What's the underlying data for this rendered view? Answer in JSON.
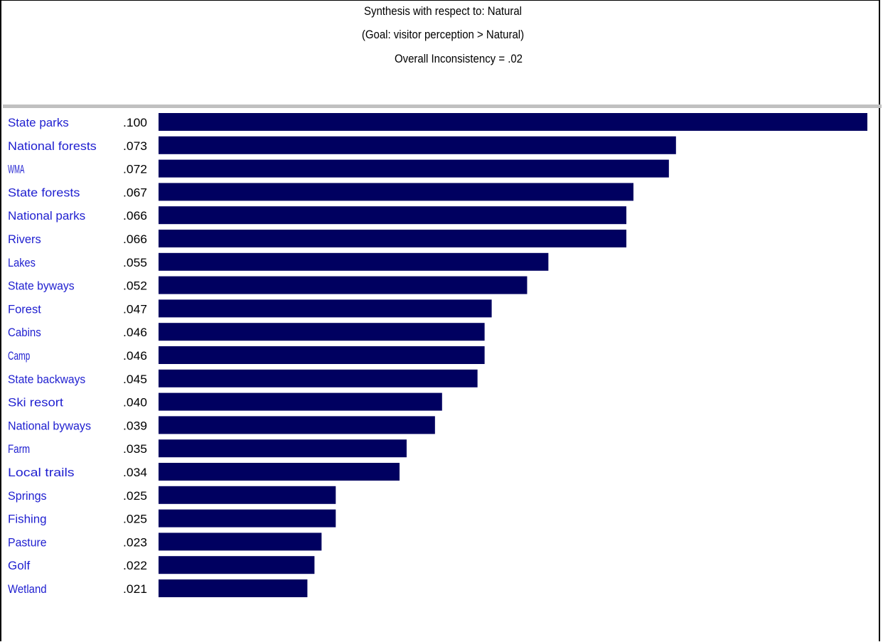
{
  "chart_data": {
    "type": "bar",
    "orientation": "horizontal",
    "title": "Synthesis with respect to: Natural",
    "subtitle": "(Goal: visitor perception > Natural)",
    "inconsistency_label": "Overall Inconsistency = .02",
    "categories": [
      "State parks",
      "National forests",
      "WMA",
      "State forests",
      "National parks",
      "Rivers",
      "Lakes",
      "State byways",
      "Forest",
      "Cabins",
      "Camp",
      "State backways",
      "Ski resort",
      "National byways",
      "Farm",
      "Local trails",
      "Springs",
      "Fishing",
      "Pasture",
      "Golf",
      "Wetland"
    ],
    "value_labels": [
      ".100",
      ".073",
      ".072",
      ".067",
      ".066",
      ".066",
      ".055",
      ".052",
      ".047",
      ".046",
      ".046",
      ".045",
      ".040",
      ".039",
      ".035",
      ".034",
      ".025",
      ".025",
      ".023",
      ".022",
      ".021"
    ],
    "values": [
      0.1,
      0.073,
      0.072,
      0.067,
      0.066,
      0.066,
      0.055,
      0.052,
      0.047,
      0.046,
      0.046,
      0.045,
      0.04,
      0.039,
      0.035,
      0.034,
      0.025,
      0.025,
      0.023,
      0.022,
      0.021
    ],
    "xlim": [
      0,
      0.1
    ],
    "grid": false,
    "bar_color": "#000060",
    "label_color": "#1f1fd0"
  }
}
